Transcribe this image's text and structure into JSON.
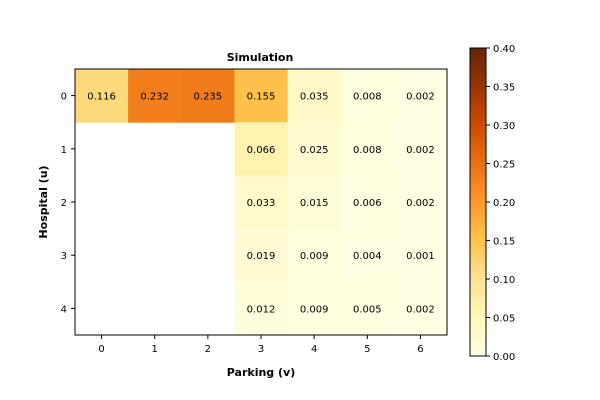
{
  "chart_data": {
    "type": "heatmap",
    "title": "Simulation",
    "xlabel": "Parking (v)",
    "ylabel": "Hospital (u)",
    "x_ticks": [
      "0",
      "1",
      "2",
      "3",
      "4",
      "5",
      "6"
    ],
    "y_ticks": [
      "0",
      "1",
      "2",
      "3",
      "4"
    ],
    "values": [
      [
        0.116,
        0.232,
        0.235,
        0.155,
        0.035,
        0.008,
        0.002
      ],
      [
        null,
        null,
        null,
        0.066,
        0.025,
        0.008,
        0.002
      ],
      [
        null,
        null,
        null,
        0.033,
        0.015,
        0.006,
        0.002
      ],
      [
        null,
        null,
        null,
        0.019,
        0.009,
        0.004,
        0.001
      ],
      [
        null,
        null,
        null,
        0.012,
        0.009,
        0.005,
        0.002
      ]
    ],
    "colorscale": "YlOrBr",
    "vmin": 0.0,
    "vmax": 0.4,
    "colorbar_ticks": [
      "0.00",
      "0.05",
      "0.10",
      "0.15",
      "0.20",
      "0.25",
      "0.30",
      "0.35",
      "0.40"
    ],
    "colorbar_values": [
      0.0,
      0.05,
      0.1,
      0.15,
      0.2,
      0.25,
      0.3,
      0.35,
      0.4
    ]
  }
}
